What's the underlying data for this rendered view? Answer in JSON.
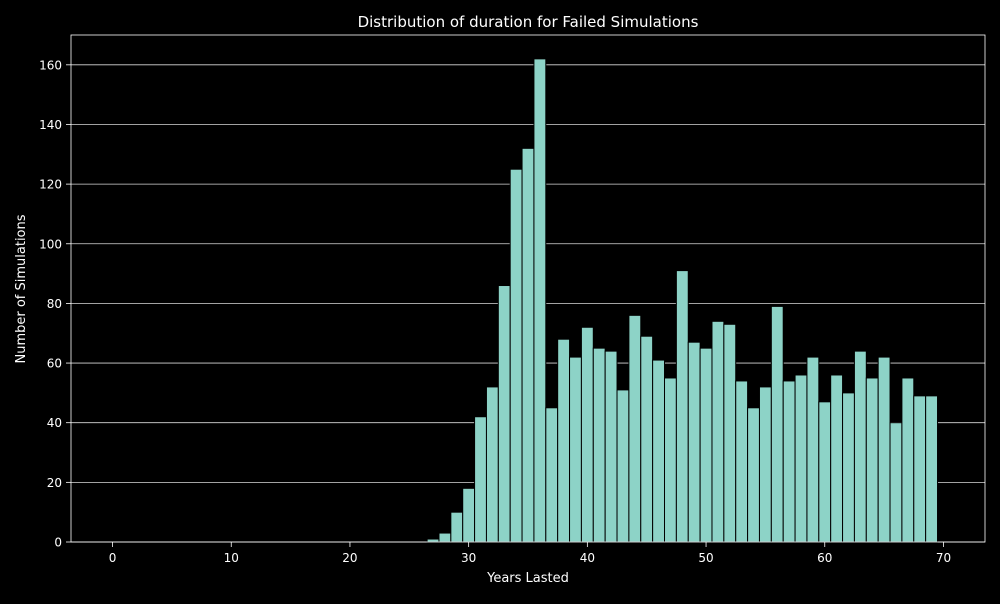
{
  "chart_data": {
    "type": "bar",
    "title": "Distribution of duration for Failed Simulations",
    "xlabel": "Years Lasted",
    "ylabel": "Number of Simulations",
    "xlim": [
      -3.5,
      73.5
    ],
    "ylim": [
      0,
      170
    ],
    "xticks": [
      0,
      10,
      20,
      30,
      40,
      50,
      60,
      70
    ],
    "yticks": [
      0,
      20,
      40,
      60,
      80,
      100,
      120,
      140,
      160
    ],
    "grid": "horizontal",
    "colors": {
      "background": "#000000",
      "bar_fill": "#8dd3c7",
      "bar_edge": "#000000",
      "grid": "#d9d9d9",
      "text": "#ffffff"
    },
    "x": [
      27,
      28,
      29,
      30,
      31,
      32,
      33,
      34,
      35,
      36,
      37,
      38,
      39,
      40,
      41,
      42,
      43,
      44,
      45,
      46,
      47,
      48,
      49,
      50,
      51,
      52,
      53,
      54,
      55,
      56,
      57,
      58,
      59,
      60,
      61,
      62,
      63,
      64,
      65,
      66,
      67,
      68,
      69
    ],
    "values": [
      1,
      3,
      10,
      18,
      42,
      52,
      86,
      125,
      132,
      162,
      45,
      68,
      62,
      72,
      65,
      64,
      51,
      76,
      69,
      61,
      55,
      91,
      67,
      65,
      74,
      73,
      54,
      45,
      52,
      79,
      54,
      56,
      62,
      47,
      56,
      50,
      64,
      55,
      62,
      40,
      55,
      49,
      49
    ]
  }
}
